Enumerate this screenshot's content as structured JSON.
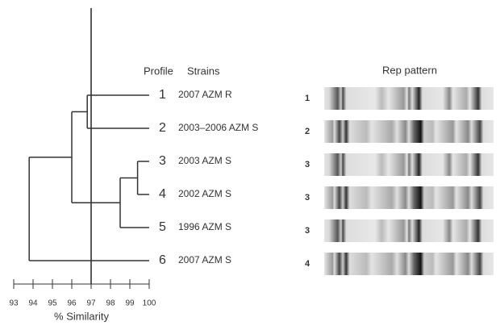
{
  "chart_data": {
    "type": "dendrogram",
    "headers": {
      "profile": "Profile",
      "strains": "Strains",
      "pattern": "Rep pattern"
    },
    "leaves": [
      {
        "profile": "1",
        "strains": "2007  AZM  R",
        "pattern": "1"
      },
      {
        "profile": "2",
        "strains": "2003–2006  AZM S",
        "pattern": "2"
      },
      {
        "profile": "3",
        "strains": "2003 AZM S",
        "pattern": "3"
      },
      {
        "profile": "4",
        "strains": "2002 AZM S",
        "pattern": "3"
      },
      {
        "profile": "5",
        "strains": "1996 AZM S",
        "pattern": "3"
      },
      {
        "profile": "6",
        "strains": "2007 AZM S",
        "pattern": "4"
      }
    ],
    "merges": [
      {
        "children": [
          0,
          1
        ],
        "similarity": 96.8
      },
      {
        "children": [
          2,
          3
        ],
        "similarity": 99.4
      },
      {
        "children": [
          7,
          4
        ],
        "similarity": 98.5
      },
      {
        "children": [
          6,
          8
        ],
        "similarity": 96.0
      },
      {
        "children": [
          9,
          5
        ],
        "similarity": 93.8
      }
    ],
    "cutoff": 97,
    "x_label": "% Similarity",
    "xlim": [
      93,
      100
    ],
    "xticks": [
      93,
      94,
      95,
      96,
      97,
      98,
      99,
      100
    ]
  }
}
